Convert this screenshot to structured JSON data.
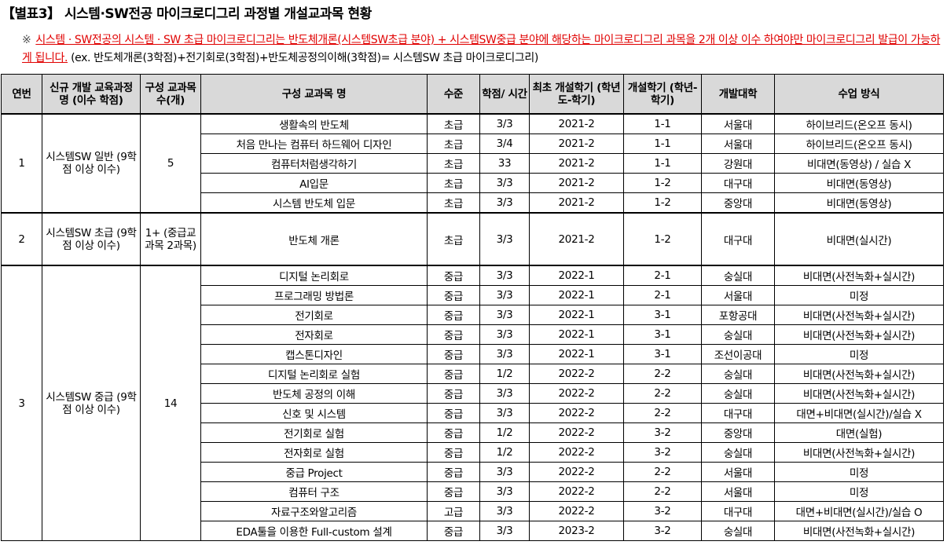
{
  "title": "【별표3】 시스템·SW전공 마이크로디그리 과정별 개설교과목 현황",
  "note": {
    "mark": "※",
    "red_text": "시스템 · SW전공의 시스템 · SW 초급 마이크로디그리는 반도체개론(시스템SW초급 분야) + 시스템SW중급 분야에 해당하는 마이크로디그리 과목을 2개 이상 이수 하여야만 마이크로디그리 발급이 가능하게 됩니다.",
    "example": " (ex. 반도체개론(3학점)+전기회로(3학점)+반도체공정의이해(3학점)= 시스템SW 초급 마이크로디그리)"
  },
  "headers": [
    "연번",
    "신규 개발 교육과정 명 (이수 학점)",
    "구성 교과목 수(개)",
    "구성 교과목 명",
    "수준",
    "학점/ 시간",
    "최초 개설학기 (학년도-학기)",
    "개설학기 (학년-학기)",
    "개발대학",
    "수업 방식"
  ],
  "groups": [
    {
      "no": "1",
      "program": "시스템SW 일반 (9학점 이상 이수)",
      "count": "5",
      "courses": [
        [
          "생활속의 반도체",
          "초급",
          "3/3",
          "2021-2",
          "1-1",
          "서울대",
          "하이브리드(온오프 동시)"
        ],
        [
          "처음 만나는 컴퓨터 하드웨어 디자인",
          "초급",
          "3/4",
          "2021-2",
          "1-1",
          "서울대",
          "하이브리드(온오프 동시)"
        ],
        [
          "컴퓨터처럼생각하기",
          "초급",
          "33",
          "2021-2",
          "1-1",
          "강원대",
          "비대면(동영상) / 실습 X"
        ],
        [
          "AI입문",
          "초급",
          "3/3",
          "2021-2",
          "1-2",
          "대구대",
          "비대면(동영상)"
        ],
        [
          "시스템 반도체 입문",
          "초급",
          "3/3",
          "2021-2",
          "1-2",
          "중앙대",
          "비대면(동영상)"
        ]
      ]
    },
    {
      "no": "2",
      "program": "시스템SW 초급 (9학점 이상 이수)",
      "count": "1+ (중급교 과목 2과목)",
      "courses": [
        [
          "반도체 개론",
          "초급",
          "3/3",
          "2021-2",
          "1-2",
          "대구대",
          "비대면(실시간)"
        ]
      ]
    },
    {
      "no": "3",
      "program": "시스템SW 중급 (9학점 이상 이수)",
      "count": "14",
      "courses": [
        [
          "디지털 논리회로",
          "중급",
          "3/3",
          "2022-1",
          "2-1",
          "숭실대",
          "비대면(사전녹화+실시간)"
        ],
        [
          "프로그래밍 방법론",
          "중급",
          "3/3",
          "2022-1",
          "2-1",
          "서울대",
          "미정"
        ],
        [
          "전기회로",
          "중급",
          "3/3",
          "2022-1",
          "3-1",
          "포항공대",
          "비대면(사전녹화+실시간)"
        ],
        [
          "전자회로",
          "중급",
          "3/3",
          "2022-1",
          "3-1",
          "숭실대",
          "비대면(사전녹화+실시간)"
        ],
        [
          "캡스톤디자인",
          "중급",
          "3/3",
          "2022-1",
          "3-1",
          "조선이공대",
          "미정"
        ],
        [
          "디지털 논리회로 실험",
          "중급",
          "1/2",
          "2022-2",
          "2-2",
          "숭실대",
          "비대면(사전녹화+실시간)"
        ],
        [
          "반도체 공정의 이해",
          "중급",
          "3/3",
          "2022-2",
          "2-2",
          "숭실대",
          "비대면(사전녹화+실시간)"
        ],
        [
          "신호 및 시스템",
          "중급",
          "3/3",
          "2022-2",
          "2-2",
          "대구대",
          "대면+비대면(실시간)/실습 X"
        ],
        [
          "전기회로 실험",
          "중급",
          "1/2",
          "2022-2",
          "3-2",
          "중앙대",
          "대면(실험)"
        ],
        [
          "전자회로 실험",
          "중급",
          "1/2",
          "2022-2",
          "3-2",
          "숭실대",
          "비대면(사전녹화+실시간)"
        ],
        [
          "중급 Project",
          "중급",
          "3/3",
          "2022-2",
          "2-2",
          "서울대",
          "미정"
        ],
        [
          "컴퓨터 구조",
          "중급",
          "3/3",
          "2022-2",
          "2-2",
          "서울대",
          "미정"
        ],
        [
          "자료구조와알고리즘",
          "고급",
          "3/3",
          "2022-2",
          "3-2",
          "대구대",
          "대면+비대면(실시간)/실습 O"
        ],
        [
          "EDA툴을 이용한 Full-custom 설계",
          "중급",
          "3/3",
          "2023-2",
          "3-2",
          "숭실대",
          "비대면(사전녹화+실시간)"
        ]
      ]
    }
  ]
}
